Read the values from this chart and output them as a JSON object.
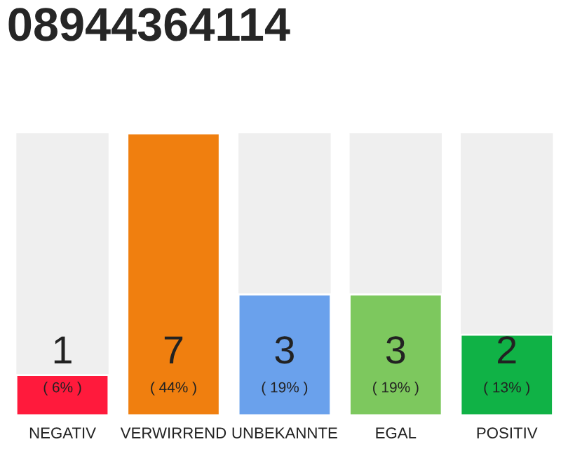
{
  "chart_data": {
    "type": "bar",
    "title": "08944364114",
    "categories": [
      "NEGATIV",
      "VERWIRREND",
      "UNBEKANNTE",
      "EGAL",
      "POSITIV"
    ],
    "values": [
      1,
      7,
      3,
      3,
      2
    ],
    "colors": [
      "#ff1a3c",
      "#f07f0f",
      "#6aa1ec",
      "#7dc85e",
      "#10b246"
    ],
    "data_labels": true,
    "annotations": [
      "( 6% )",
      "( 44% )",
      "( 19% )",
      "( 19% )",
      "( 13% )"
    ],
    "grid": false,
    "legend": false
  }
}
